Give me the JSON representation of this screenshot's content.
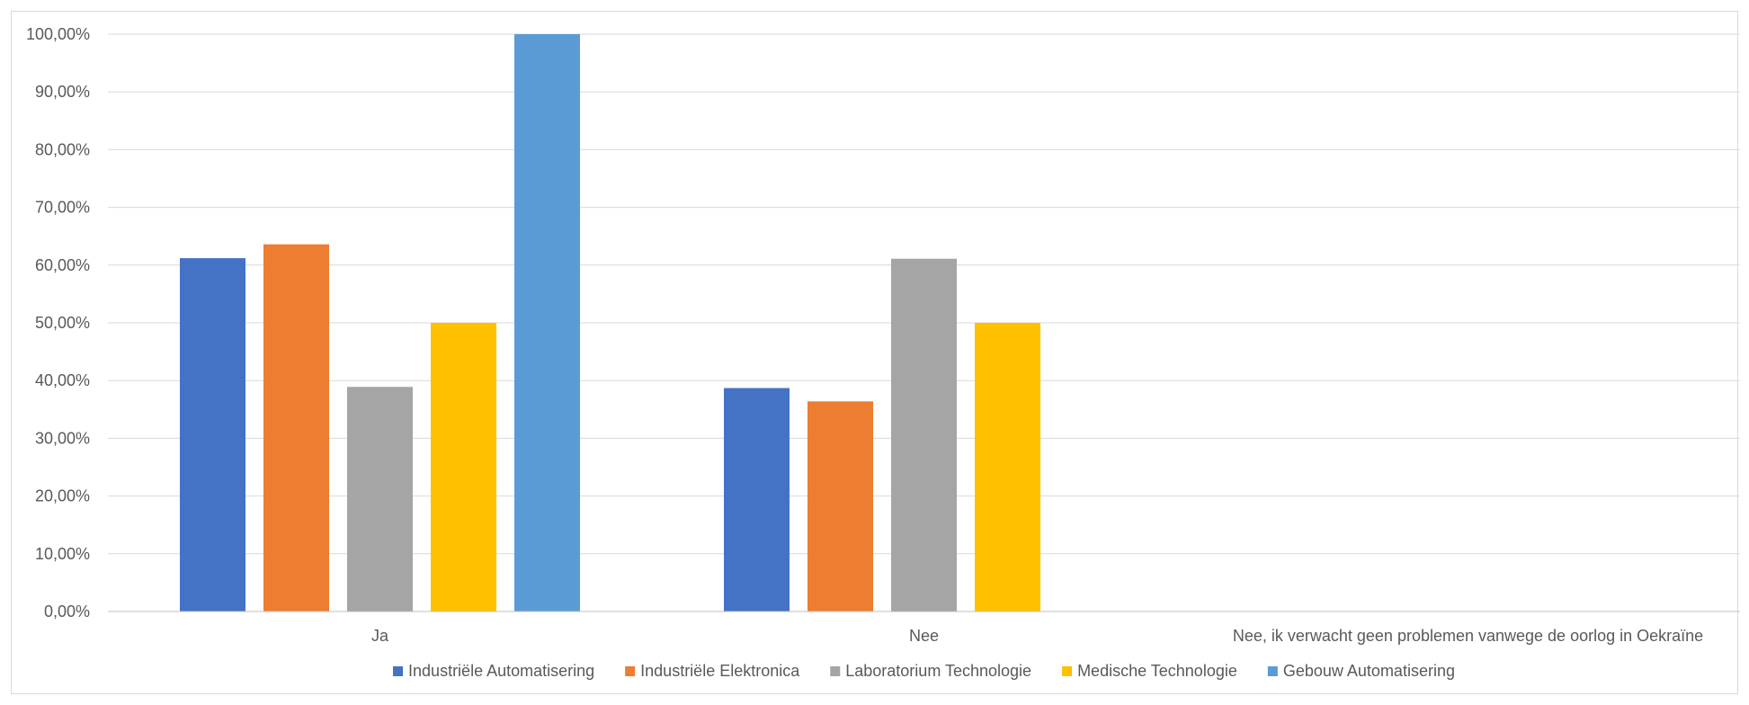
{
  "chart_data": {
    "type": "bar",
    "title": "",
    "xlabel": "",
    "ylabel": "",
    "ylim": [
      0,
      1
    ],
    "yticks": [
      "0,00%",
      "10,00%",
      "20,00%",
      "30,00%",
      "40,00%",
      "50,00%",
      "60,00%",
      "70,00%",
      "80,00%",
      "90,00%",
      "100,00%"
    ],
    "categories": [
      "Ja",
      "Nee",
      "Nee, ik verwacht geen problemen vanwege de oorlog in Oekraïne"
    ],
    "series": [
      {
        "name": "Industriële Automatisering",
        "color": "#4472C4",
        "values": [
          0.612,
          0.387,
          0
        ]
      },
      {
        "name": "Industriële Elektronica",
        "color": "#ED7D31",
        "values": [
          0.636,
          0.364,
          0
        ]
      },
      {
        "name": "Laboratorium Technologie",
        "color": "#A5A5A5",
        "values": [
          0.389,
          0.611,
          0
        ]
      },
      {
        "name": "Medische Technologie",
        "color": "#FFC000",
        "values": [
          0.5,
          0.5,
          0
        ]
      },
      {
        "name": "Gebouw Automatisering",
        "color": "#5B9BD5",
        "values": [
          1.0,
          0,
          0
        ]
      }
    ],
    "grid": true,
    "legend_position": "bottom"
  }
}
